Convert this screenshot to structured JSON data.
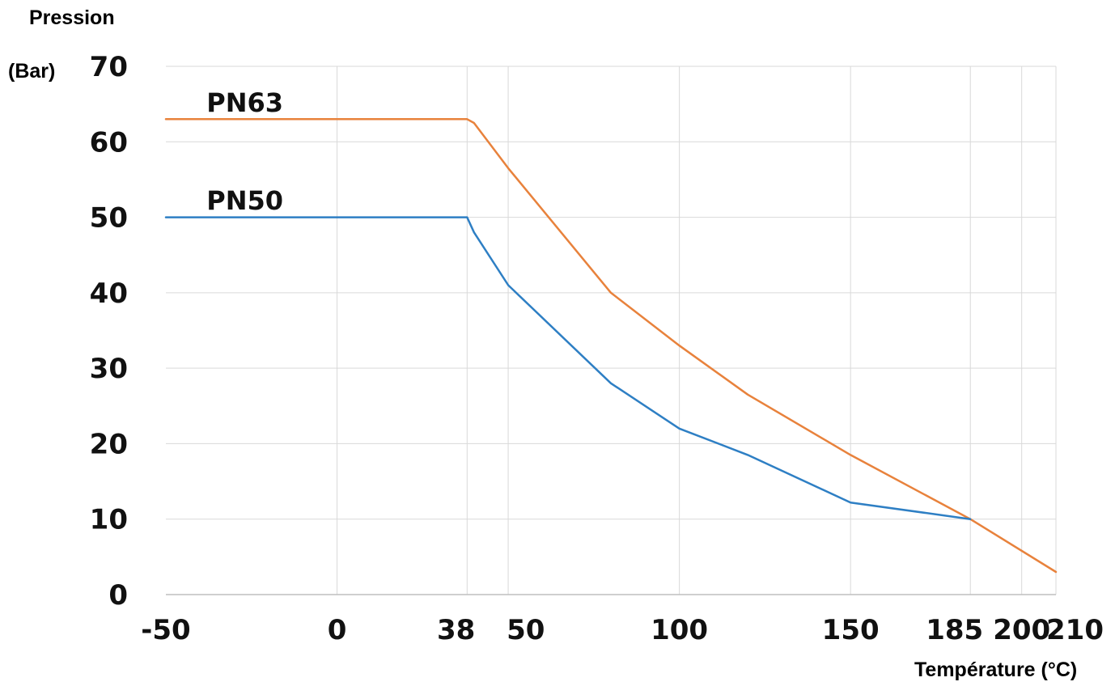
{
  "chart_data": {
    "type": "line",
    "ylabel_line1": "Pression",
    "ylabel_line2": "(Bar)",
    "xlabel": "Température (°C)",
    "xlim": [
      -50,
      210
    ],
    "ylim": [
      0,
      70
    ],
    "grid": true,
    "x_ticks": [
      -50,
      0,
      38,
      50,
      100,
      150,
      185,
      200,
      210
    ],
    "y_ticks": [
      0,
      10,
      20,
      30,
      40,
      50,
      60,
      70
    ],
    "series": [
      {
        "name": "PN63",
        "color": "#E8823C",
        "points": [
          [
            -50,
            63
          ],
          [
            38,
            63
          ],
          [
            40,
            62.5
          ],
          [
            50,
            56.5
          ],
          [
            80,
            40
          ],
          [
            100,
            33
          ],
          [
            120,
            26.5
          ],
          [
            150,
            18.5
          ],
          [
            185,
            10
          ],
          [
            210,
            3
          ]
        ]
      },
      {
        "name": "PN50",
        "color": "#2E7FC4",
        "points": [
          [
            -50,
            50
          ],
          [
            38,
            50
          ],
          [
            40,
            48
          ],
          [
            50,
            41
          ],
          [
            80,
            28
          ],
          [
            100,
            22
          ],
          [
            120,
            18.5
          ],
          [
            150,
            12.2
          ],
          [
            185,
            10
          ]
        ]
      }
    ],
    "series_label_positions": [
      {
        "name": "PN63",
        "x": -40,
        "y": 65.3
      },
      {
        "name": "PN50",
        "x": -40,
        "y": 52.3
      }
    ]
  }
}
